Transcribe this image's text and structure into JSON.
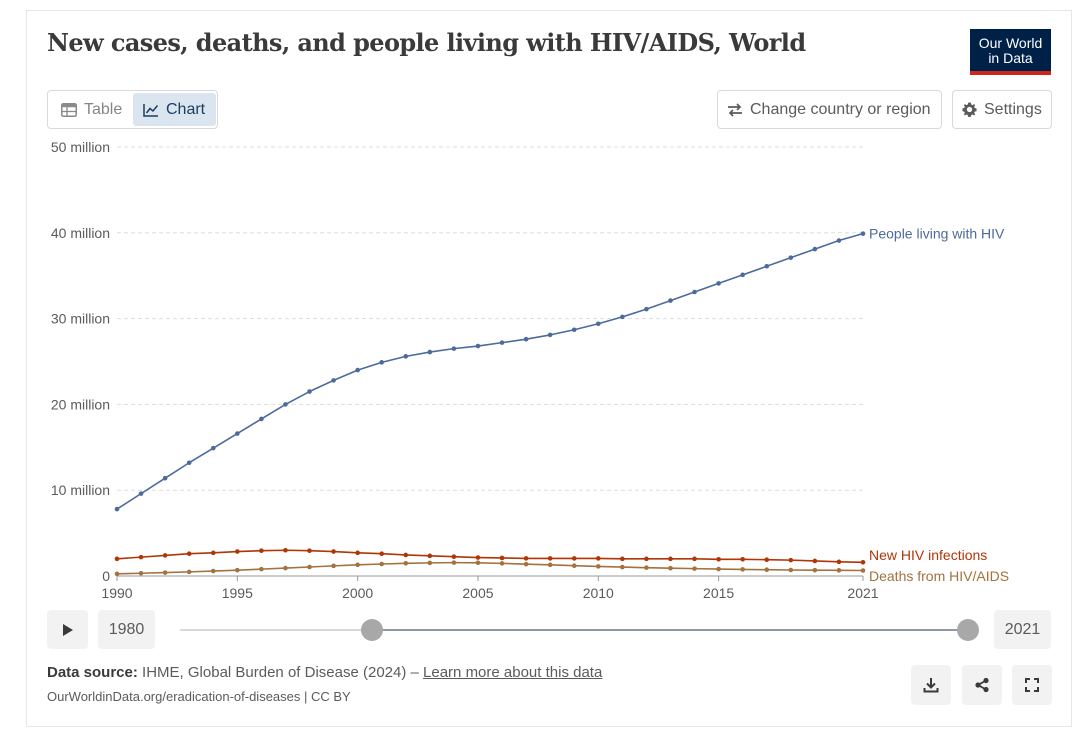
{
  "header": {
    "title": "New cases, deaths, and people living with HIV/AIDS, World",
    "logo_line1": "Our World",
    "logo_line2": "in Data"
  },
  "tabs": [
    {
      "label": "Table",
      "icon": "table-icon",
      "active": false
    },
    {
      "label": "Chart",
      "icon": "line-chart-icon",
      "active": true
    }
  ],
  "controls": {
    "change_region_label": "Change country or region",
    "settings_label": "Settings"
  },
  "timeline": {
    "start_year": "1980",
    "end_year": "2021"
  },
  "footer": {
    "source_label": "Data source:",
    "source_text": "IHME, Global Burden of Disease (2024) –",
    "learn_more": "Learn more about this data",
    "license": "OurWorldinData.org/eradication-of-diseases | CC BY"
  },
  "colors": {
    "people_living": "#4c6a9c",
    "new_infections": "#b13507",
    "deaths": "#a2723f",
    "logo_bg": "#002147",
    "logo_accent": "#ce261e"
  },
  "chart_data": {
    "type": "line",
    "title": "New cases, deaths, and people living with HIV/AIDS, World",
    "xlim": [
      1990,
      2021
    ],
    "ylim": [
      0,
      50000000
    ],
    "x_ticks": [
      1990,
      1995,
      2000,
      2005,
      2010,
      2015,
      2021
    ],
    "x_tick_labels": [
      "1990",
      "1995",
      "2000",
      "2005",
      "2010",
      "2015",
      "2021"
    ],
    "y_ticks": [
      0,
      10000000,
      20000000,
      30000000,
      40000000,
      50000000
    ],
    "y_tick_labels": [
      "0",
      "10 million",
      "20 million",
      "30 million",
      "40 million",
      "50 million"
    ],
    "grid": true,
    "legend": "right-end-labels",
    "x": [
      1990,
      1991,
      1992,
      1993,
      1994,
      1995,
      1996,
      1997,
      1998,
      1999,
      2000,
      2001,
      2002,
      2003,
      2004,
      2005,
      2006,
      2007,
      2008,
      2009,
      2010,
      2011,
      2012,
      2013,
      2014,
      2015,
      2016,
      2017,
      2018,
      2019,
      2020,
      2021
    ],
    "series": [
      {
        "name": "People living with HIV",
        "color": "#4c6a9c",
        "values": [
          7800000,
          9600000,
          11400000,
          13200000,
          14900000,
          16600000,
          18300000,
          20000000,
          21500000,
          22800000,
          24000000,
          24900000,
          25600000,
          26100000,
          26500000,
          26800000,
          27200000,
          27600000,
          28100000,
          28700000,
          29400000,
          30200000,
          31100000,
          32100000,
          33100000,
          34100000,
          35100000,
          36100000,
          37100000,
          38100000,
          39100000,
          39900000
        ]
      },
      {
        "name": "New HIV infections",
        "color": "#b13507",
        "values": [
          2000000,
          2200000,
          2400000,
          2600000,
          2700000,
          2850000,
          2950000,
          3000000,
          2950000,
          2850000,
          2700000,
          2600000,
          2450000,
          2350000,
          2250000,
          2150000,
          2100000,
          2050000,
          2050000,
          2050000,
          2050000,
          2000000,
          2000000,
          2000000,
          2000000,
          1950000,
          1950000,
          1900000,
          1850000,
          1750000,
          1650000,
          1600000
        ]
      },
      {
        "name": "Deaths from HIV/AIDS",
        "color": "#a2723f",
        "values": [
          250000,
          320000,
          400000,
          480000,
          580000,
          680000,
          800000,
          920000,
          1050000,
          1180000,
          1300000,
          1400000,
          1480000,
          1530000,
          1560000,
          1540000,
          1470000,
          1380000,
          1300000,
          1200000,
          1120000,
          1040000,
          970000,
          910000,
          860000,
          810000,
          770000,
          730000,
          700000,
          680000,
          660000,
          640000
        ]
      }
    ]
  }
}
